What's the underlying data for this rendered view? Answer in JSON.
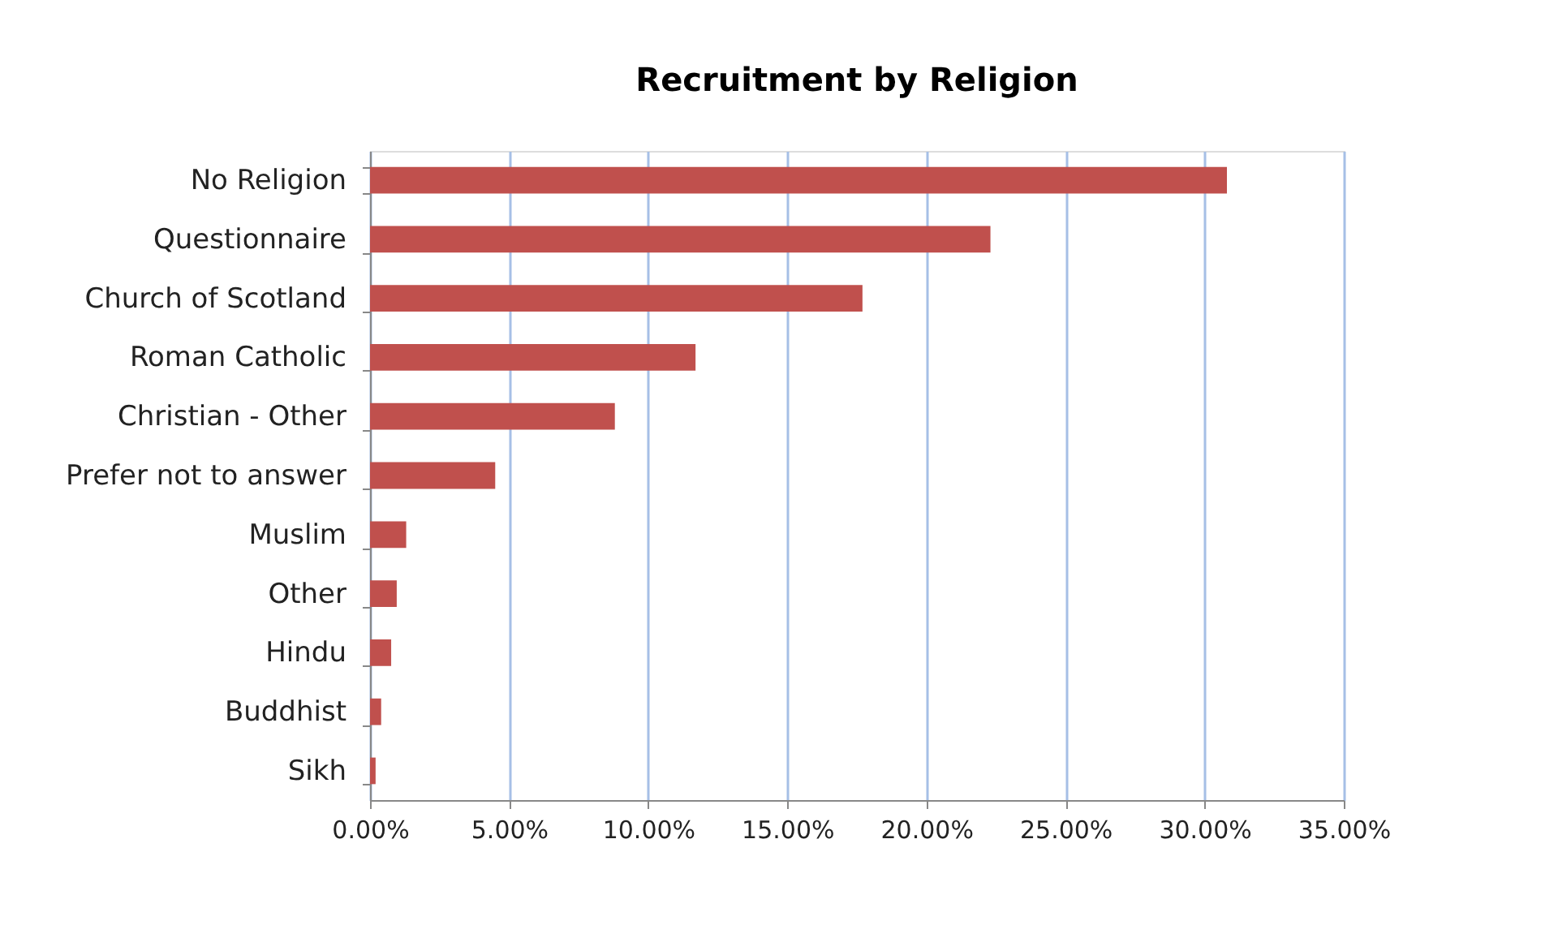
{
  "chart_data": {
    "type": "bar",
    "orientation": "horizontal",
    "title": "Recruitment by Religion",
    "categories": [
      "No Religion",
      "Questionnaire",
      "Church of Scotland",
      "Roman Catholic",
      "Christian - Other",
      "Prefer not to answer",
      "Muslim",
      "Other",
      "Hindu",
      "Buddhist",
      "Sikh"
    ],
    "values": [
      30.8,
      22.3,
      17.7,
      11.7,
      8.8,
      4.5,
      1.3,
      0.96,
      0.76,
      0.4,
      0.2
    ],
    "color": "#c0504d",
    "xlim": [
      0,
      35
    ],
    "xticks": [
      {
        "value": 0,
        "label": "0.00%"
      },
      {
        "value": 5,
        "label": "5.00%"
      },
      {
        "value": 10,
        "label": "10.00%"
      },
      {
        "value": 15,
        "label": "15.00%"
      },
      {
        "value": 20,
        "label": "20.00%"
      },
      {
        "value": 25,
        "label": "25.00%"
      },
      {
        "value": 30,
        "label": "30.00%"
      },
      {
        "value": 35,
        "label": "35.00%"
      }
    ],
    "grid": "x"
  }
}
